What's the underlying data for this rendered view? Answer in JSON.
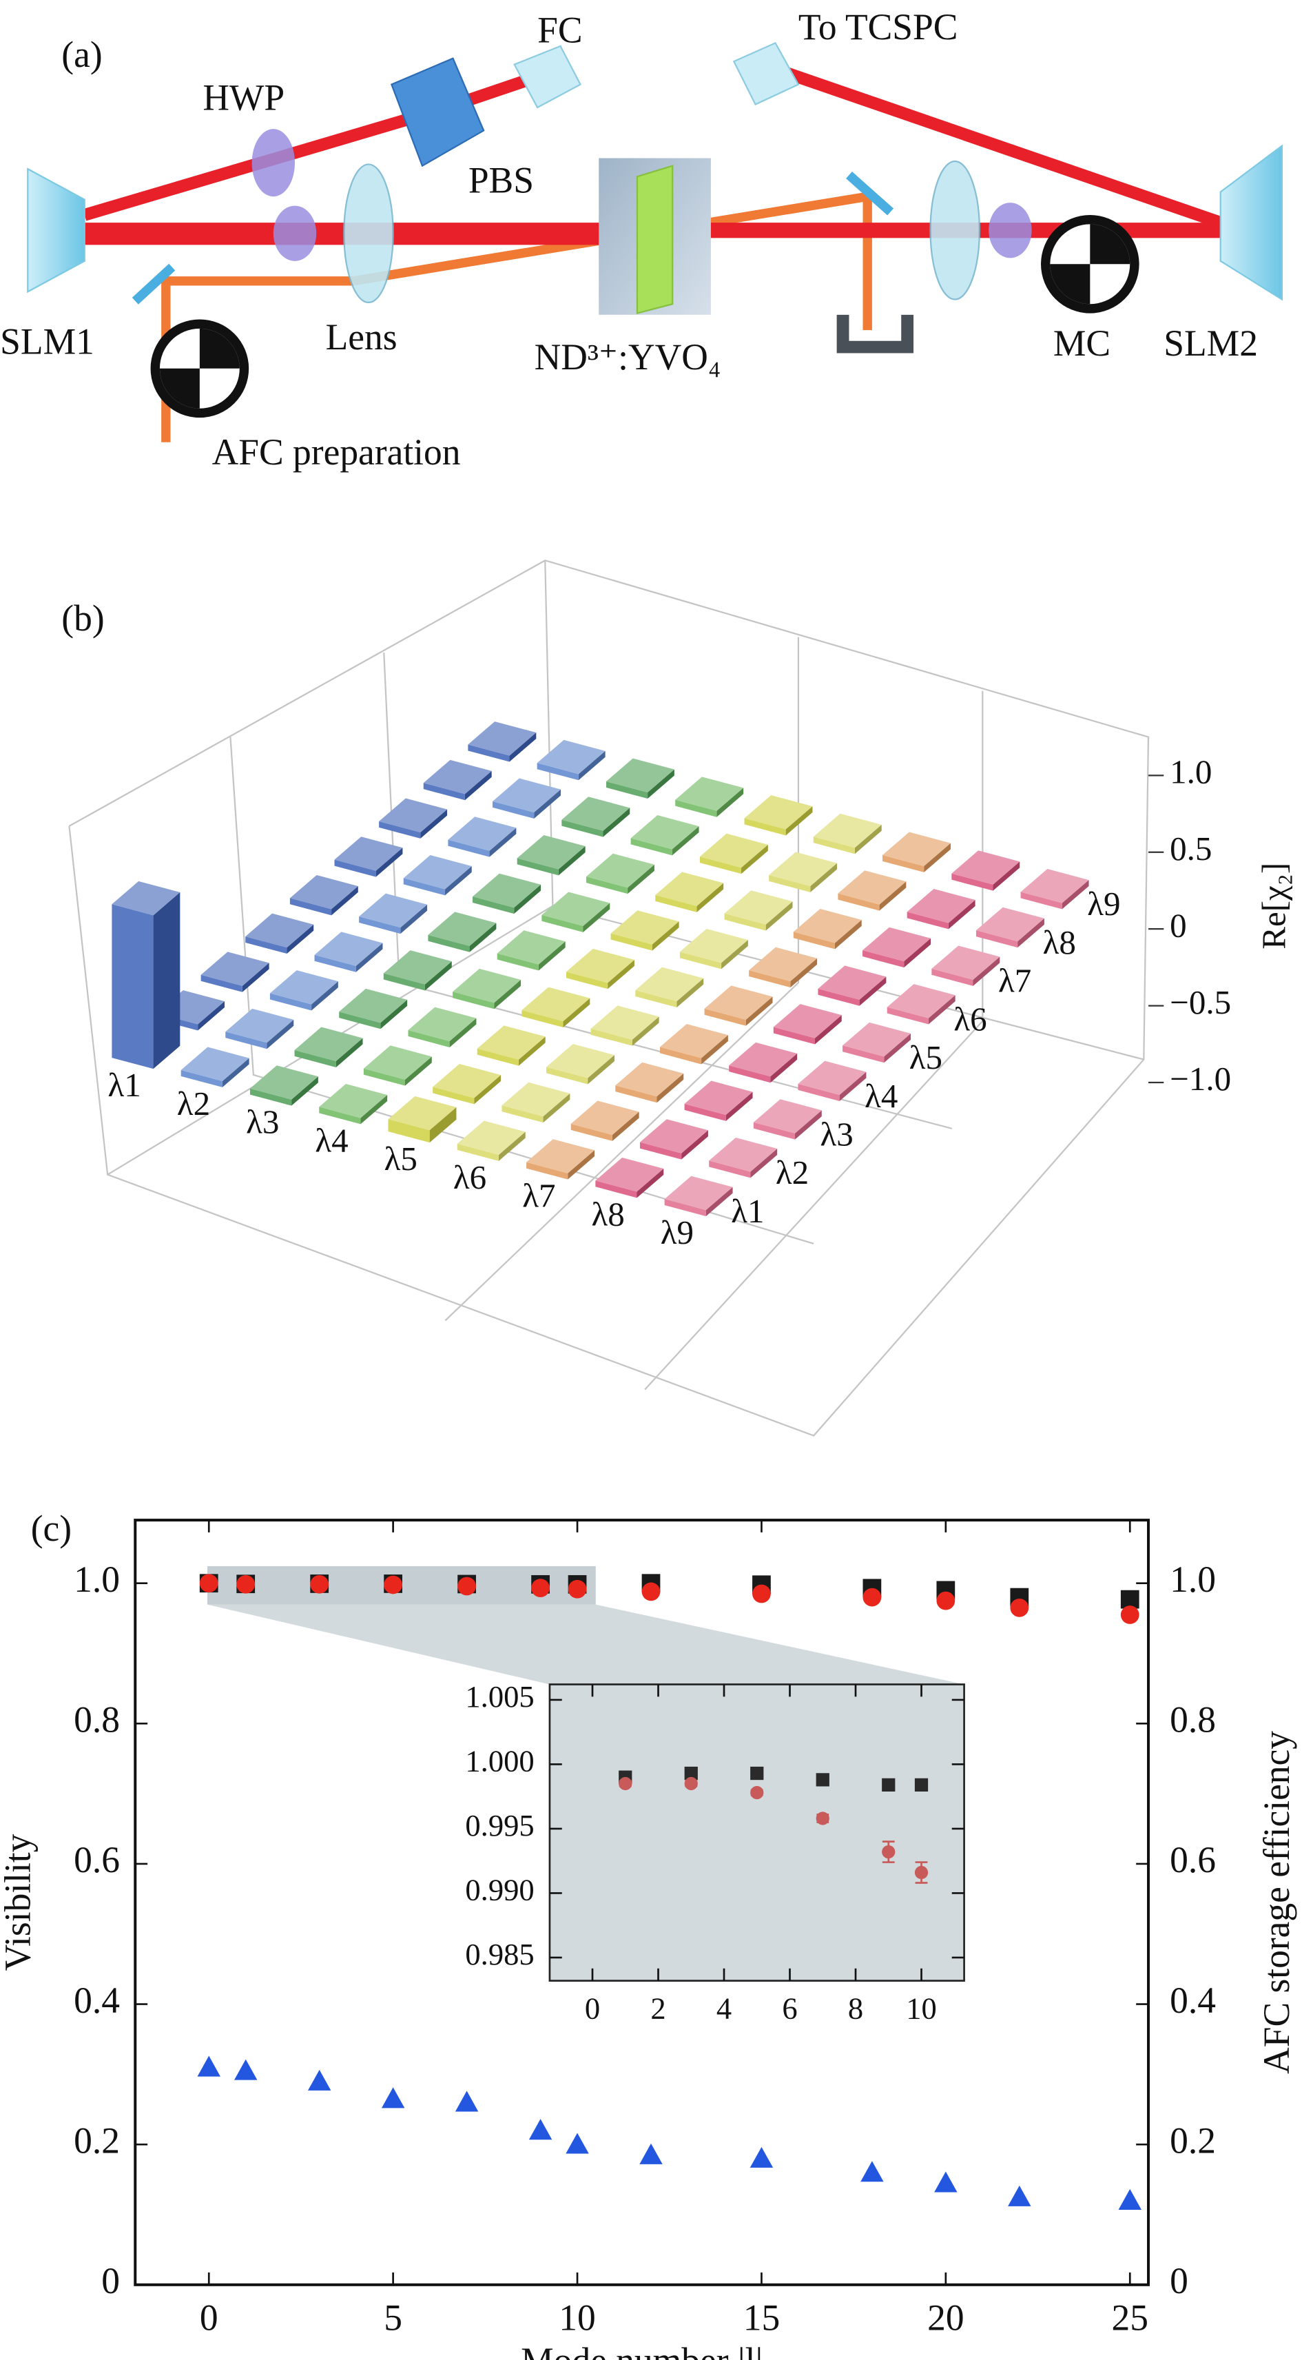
{
  "diagram": {
    "panel_label": "(a)",
    "labels": {
      "fc": "FC",
      "tcspc": "To TCSPC",
      "hwp": "HWP",
      "pbs": "PBS",
      "slm1": "SLM1",
      "lens": "Lens",
      "crystal": "ND³⁺:YVO₄",
      "mc": "MC",
      "slm2": "SLM2",
      "afc": "AFC preparation"
    }
  },
  "chart_data": [
    {
      "type": "bar3d",
      "panel_label": "(b)",
      "zlabel": "Re[χ₂]",
      "row_categories": [
        "λ1",
        "λ2",
        "λ3",
        "λ4",
        "λ5",
        "λ6",
        "λ7",
        "λ8",
        "λ9"
      ],
      "column_categories": [
        "λ1",
        "λ2",
        "λ3",
        "λ4",
        "λ5",
        "λ6",
        "λ7",
        "λ8",
        "λ9"
      ],
      "colors": [
        "#3d62b8",
        "#5a84cc",
        "#4d9e55",
        "#6cb85e",
        "#cfd040",
        "#d8d865",
        "#e39a5a",
        "#d9507a",
        "#e06a8c"
      ],
      "values": [
        [
          1.0,
          0.04,
          0.04,
          0.04,
          0.04,
          0.04,
          0.04,
          0.04,
          0.04
        ],
        [
          0.04,
          0.04,
          0.04,
          0.04,
          0.04,
          0.04,
          0.04,
          0.04,
          0.04
        ],
        [
          0.04,
          0.04,
          0.04,
          0.04,
          0.04,
          0.04,
          0.04,
          0.04,
          0.04
        ],
        [
          0.04,
          0.04,
          0.04,
          0.04,
          0.04,
          0.04,
          0.04,
          0.04,
          0.04
        ],
        [
          0.08,
          0.04,
          0.04,
          0.04,
          0.04,
          0.04,
          0.04,
          0.04,
          0.04
        ],
        [
          0.04,
          0.04,
          0.04,
          0.04,
          0.04,
          0.04,
          0.04,
          0.04,
          0.04
        ],
        [
          0.04,
          0.04,
          0.04,
          0.04,
          0.04,
          0.04,
          0.04,
          0.04,
          0.04
        ],
        [
          0.04,
          0.04,
          0.04,
          0.04,
          0.04,
          0.04,
          0.04,
          0.04,
          0.04
        ],
        [
          0.04,
          0.04,
          0.04,
          0.04,
          0.04,
          0.04,
          0.04,
          0.04,
          0.04
        ]
      ],
      "zlim": [
        -1,
        1
      ],
      "zticks": [
        {
          "value": 1,
          "label": "1.0"
        },
        0.5,
        0,
        {
          "value": -0.5,
          "label": "−0.5"
        },
        {
          "value": -1,
          "label": "−1.0"
        }
      ]
    },
    {
      "type": "scatter",
      "panel_label": "(c)",
      "xlabel": "Mode number |l|",
      "ylabel": "Visibility",
      "y2label": "AFC storage efficiency",
      "y2_color": "#2357e0",
      "x": [
        0,
        1,
        3,
        5,
        7,
        9,
        10,
        12,
        15,
        18,
        20,
        22,
        25
      ],
      "series": [
        {
          "color": "#1a1a1a",
          "marker": "square",
          "values": [
            1.0,
            0.999,
            0.9993,
            0.9993,
            0.9988,
            0.9984,
            0.9984,
            1.0,
            0.998,
            0.993,
            0.99,
            0.98,
            0.977
          ]
        },
        {
          "color": "#e8261c",
          "marker": "circle",
          "values": [
            1.0,
            0.9985,
            0.9985,
            0.9978,
            0.9958,
            0.9932,
            0.9916,
            0.988,
            0.985,
            0.98,
            0.975,
            0.965,
            0.955
          ]
        },
        {
          "color": "#2357e0",
          "marker": "triangle",
          "axis": "y2",
          "values": [
            0.31,
            0.305,
            0.29,
            0.265,
            0.26,
            0.22,
            0.2,
            0.185,
            0.18,
            0.16,
            0.145,
            0.125,
            0.12
          ]
        }
      ],
      "xlim": [
        -2,
        25.5
      ],
      "xticks": [
        0,
        5,
        10,
        15,
        20,
        25
      ],
      "ylim": [
        0,
        1.09
      ],
      "yticks": [
        0,
        0.2,
        0.4,
        0.6,
        0.8,
        {
          "value": 1,
          "label": "1.0"
        }
      ],
      "y2lim": [
        0,
        1.09
      ],
      "y2ticks": [
        0,
        0.2,
        0.4,
        0.6,
        0.8,
        {
          "value": 1,
          "label": "1.0"
        }
      ]
    },
    {
      "type": "scatter",
      "x": [
        1,
        3,
        5,
        7,
        9,
        10
      ],
      "series": [
        {
          "color": "#2a2a2a",
          "marker": "square",
          "values": [
            0.999,
            0.9993,
            0.9993,
            0.9988,
            0.9984,
            0.9984
          ]
        },
        {
          "color": "#c85a5a",
          "marker": "circle",
          "values": [
            0.9985,
            0.9985,
            0.9978,
            0.9958,
            0.9932,
            0.9916
          ],
          "errors": [
            0.0002,
            0.0002,
            0.0002,
            0.0003,
            0.0008,
            0.0008
          ]
        }
      ],
      "xlim": [
        -1.3,
        11.3
      ],
      "xticks": [
        0,
        2,
        4,
        6,
        8,
        10
      ],
      "ylim": [
        0.9832,
        1.0062
      ],
      "yticks": [
        0.985,
        {
          "value": 0.99,
          "label": "0.990"
        },
        0.995,
        {
          "value": 1,
          "label": "1.000"
        },
        1.005
      ]
    }
  ]
}
